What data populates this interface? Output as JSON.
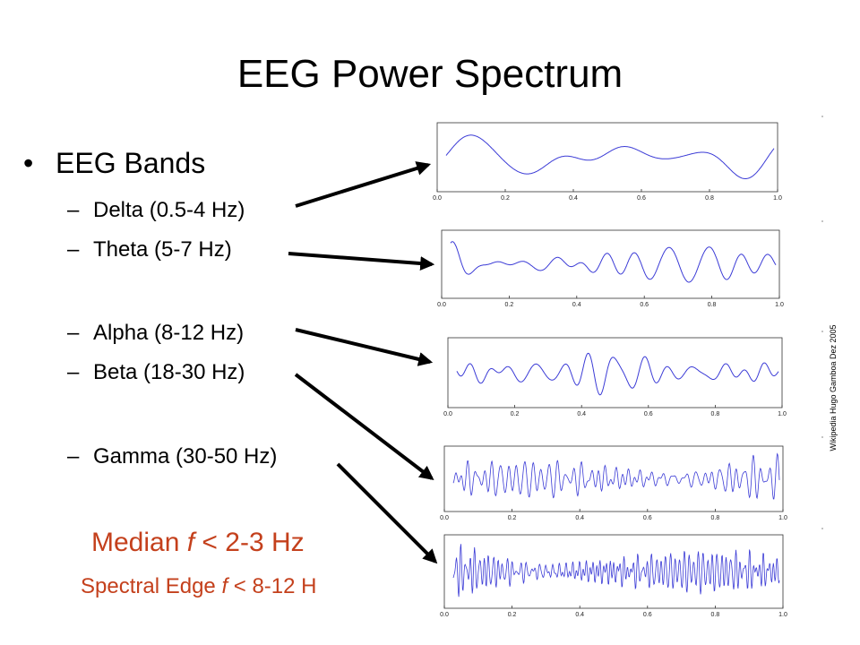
{
  "title": "EEG Power Spectrum",
  "bullet": {
    "marker": "•",
    "label": "EEG Bands"
  },
  "bands": [
    {
      "marker": "–",
      "label": "Delta (0.5-4 Hz)"
    },
    {
      "marker": "–",
      "label": "Theta (5-7 Hz)"
    },
    {
      "marker": "–",
      "label": "Alpha (8-12 Hz)"
    },
    {
      "marker": "–",
      "label": "Beta (18-30 Hz)"
    },
    {
      "marker": "–",
      "label": "Gamma (30-50 Hz)"
    }
  ],
  "median": {
    "before": "Median ",
    "symbol": "f",
    "after": " < 2-3 Hz"
  },
  "edge": {
    "before": "Spectral Edge ",
    "symbol": "f",
    "after": " < 8-12 H"
  },
  "credit": "Wikipedia Hugo Gamboa Dez 2005",
  "panels": [
    {
      "ticks": [
        "0.0",
        "0.2",
        "0.4",
        "0.6",
        "0.8",
        "1.0"
      ]
    },
    {
      "ticks": [
        "0.0",
        "0.2",
        "0.4",
        "0.6",
        "0.8",
        "1.0"
      ]
    },
    {
      "ticks": [
        "0.0",
        "0.2",
        "0.4",
        "0.6",
        "0.8",
        "1.0"
      ]
    },
    {
      "ticks": [
        "0.0",
        "0.2",
        "0.4",
        "0.6",
        "0.8",
        "1.0"
      ]
    },
    {
      "ticks": [
        "0.0",
        "0.2",
        "0.4",
        "0.6",
        "0.8",
        "1.0"
      ]
    }
  ]
}
